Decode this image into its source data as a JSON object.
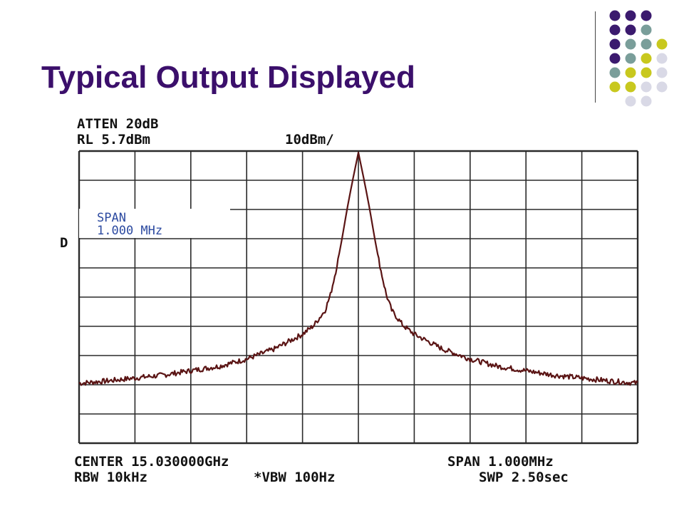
{
  "slide": {
    "title": "Typical Output Displayed"
  },
  "theme": {
    "title_color": "#3b0f6b",
    "dot_colors": [
      "#3b1a6e",
      "#7a9e9a",
      "#c8c81e",
      "#d9d9e6"
    ],
    "trace_color": "#5a1414",
    "grid_color": "#2a2a2a",
    "span_box_color": "#2c4aa0"
  },
  "chart_data": {
    "type": "line",
    "readouts": {
      "atten": "ATTEN 20dB",
      "ref_level": "RL 5.7dBm",
      "scale": "10dBm/",
      "marker": "D",
      "span_box_line1": "SPAN",
      "span_box_line2": "1.000 MHz",
      "center": "CENTER 15.030000GHz",
      "span": "SPAN 1.000MHz",
      "rbw": "RBW 10kHz",
      "vbw": "*VBW 100Hz",
      "sweep": "SWP 2.50sec"
    },
    "x_unit": "MHz offset from center",
    "y_unit": "dBm",
    "xlim": [
      -0.5,
      0.5
    ],
    "ylim": [
      -94.3,
      5.7
    ],
    "grid": {
      "x_divisions": 10,
      "y_divisions": 10
    },
    "series": [
      {
        "x": [
          -0.5,
          -0.45,
          -0.4,
          -0.35,
          -0.3,
          -0.25,
          -0.2,
          -0.15,
          -0.1,
          -0.08,
          -0.06,
          -0.05,
          -0.04,
          -0.03,
          -0.02,
          -0.01,
          0.0,
          0.01,
          0.02,
          0.03,
          0.04,
          0.05,
          0.06,
          0.08,
          0.1,
          0.15,
          0.2,
          0.25,
          0.3,
          0.35,
          0.4,
          0.45,
          0.5
        ],
        "y": [
          -73.8,
          -73.0,
          -72.0,
          -71.0,
          -69.5,
          -68.0,
          -65.5,
          -62.0,
          -57.0,
          -54.0,
          -49.0,
          -43.5,
          -35.0,
          -25.0,
          -14.0,
          -4.0,
          5.2,
          -4.0,
          -14.0,
          -25.0,
          -35.0,
          -43.5,
          -49.0,
          -54.0,
          -57.0,
          -62.0,
          -65.5,
          -68.0,
          -69.5,
          -71.0,
          -72.0,
          -73.0,
          -73.8
        ]
      }
    ]
  }
}
